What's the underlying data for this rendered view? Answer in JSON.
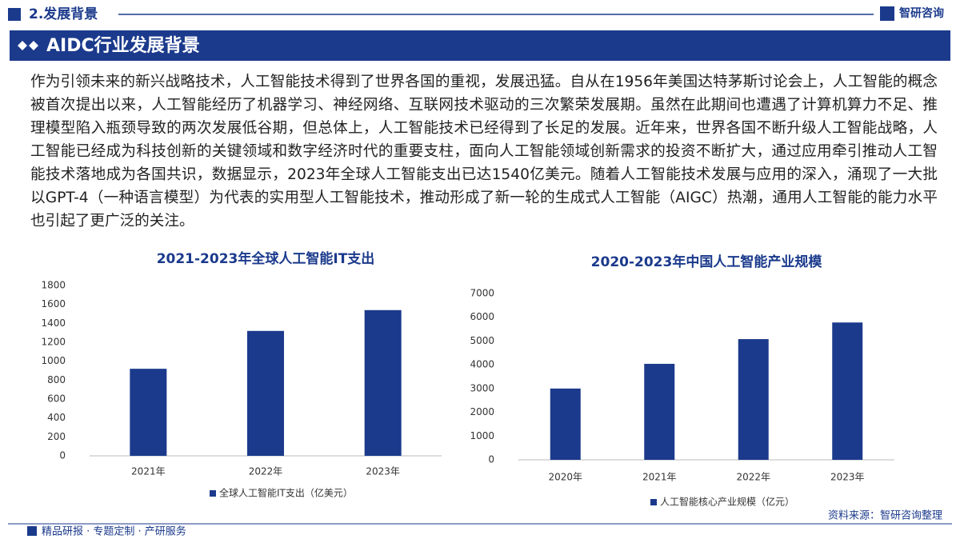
{
  "header": {
    "section": "2.发展背景",
    "logo": "智研咨询",
    "banner": "AIDC行业发展背景"
  },
  "paragraph": "作为引领未来的新兴战略技术，人工智能技术得到了世界各国的重视，发展迅猛。自从在1956年美国达特茅斯讨论会上，人工智能的概念被首次提出以来，人工智能经历了机器学习、神经网络、互联网技术驱动的三次繁荣发展期。虽然在此期间也遭遇了计算机算力不足、推理模型陷入瓶颈导致的两次发展低谷期，但总体上，人工智能技术已经得到了长足的发展。近年来，世界各国不断升级人工智能战略，人工智能已经成为科技创新的关键领域和数字经济时代的重要支柱，面向人工智能领域创新需求的投资不断扩大，通过应用牵引推动人工智能技术落地成为各国共识，数据显示，2023年全球人工智能支出已达1540亿美元。随着人工智能技术发展与应用的深入，涌现了一大批以GPT-4（一种语言模型）为代表的实用型人工智能技术，推动形成了新一轮的生成式人工智能（AIGC）热潮，通用人工智能的能力水平也引起了更广泛的关注。",
  "chart_data": [
    {
      "type": "bar",
      "title": "2021-2023年全球人工智能IT支出",
      "categories": [
        "2021年",
        "2022年",
        "2023年"
      ],
      "series": [
        {
          "name": "全球人工智能IT支出（亿美元）",
          "color": "#1b3a8c",
          "values": [
            920,
            1320,
            1540
          ]
        }
      ],
      "ylim": [
        0,
        1800
      ],
      "yticks": [
        0,
        200,
        400,
        600,
        800,
        1000,
        1200,
        1400,
        1600,
        1800
      ],
      "grid": false
    },
    {
      "type": "bar",
      "title": "2020-2023年中国人工智能产业规模",
      "categories": [
        "2020年",
        "2021年",
        "2022年",
        "2023年"
      ],
      "series": [
        {
          "name": "人工智能核心产业规模（亿元）",
          "color": "#1b3a8c",
          "values": [
            3000,
            4040,
            5080,
            5780
          ]
        }
      ],
      "ylim": [
        0,
        7000
      ],
      "yticks": [
        0,
        1000,
        2000,
        3000,
        4000,
        5000,
        6000,
        7000
      ],
      "grid": false
    }
  ],
  "source": "资料来源：智研咨询整理",
  "footer": "精品研报 · 专题定制 · 产研服务"
}
